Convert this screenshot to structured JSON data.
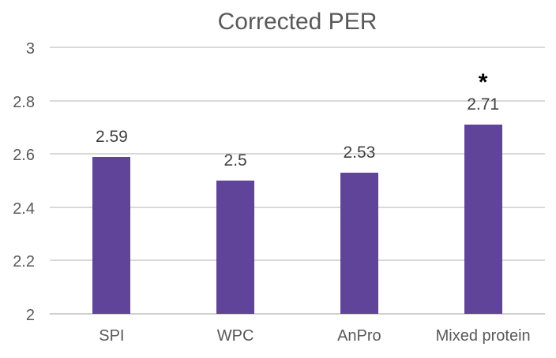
{
  "chart_data": {
    "type": "bar",
    "title": "Corrected PER",
    "categories": [
      "SPI",
      "WPC",
      "AnPro",
      "Mixed protein"
    ],
    "values": [
      2.59,
      2.5,
      2.53,
      2.71
    ],
    "value_labels": [
      "2.59",
      "2.5",
      "2.53",
      "2.71"
    ],
    "annotations": [
      "",
      "",
      "",
      "*"
    ],
    "series_note": "single series, no legend",
    "xlabel": "",
    "ylabel": "",
    "ylim": [
      2,
      3
    ],
    "yticks": [
      {
        "label": "3",
        "value": 3
      },
      {
        "label": "2.8",
        "value": 2.8
      },
      {
        "label": "2.6",
        "value": 2.6
      },
      {
        "label": "2.4",
        "value": 2.4
      },
      {
        "label": "2.2",
        "value": 2.2
      },
      {
        "label": "2",
        "value": 2
      }
    ],
    "grid": true,
    "legend_position": "none",
    "colors": {
      "bar": "#5F4499",
      "title": "#595959",
      "axis_labels": "#595959",
      "data_labels": "#3F3F3F",
      "gridline": "#D9D9D9",
      "axis_line": "#CFCFCF",
      "annotation": "#000000",
      "background": "#FFFFFF"
    }
  }
}
